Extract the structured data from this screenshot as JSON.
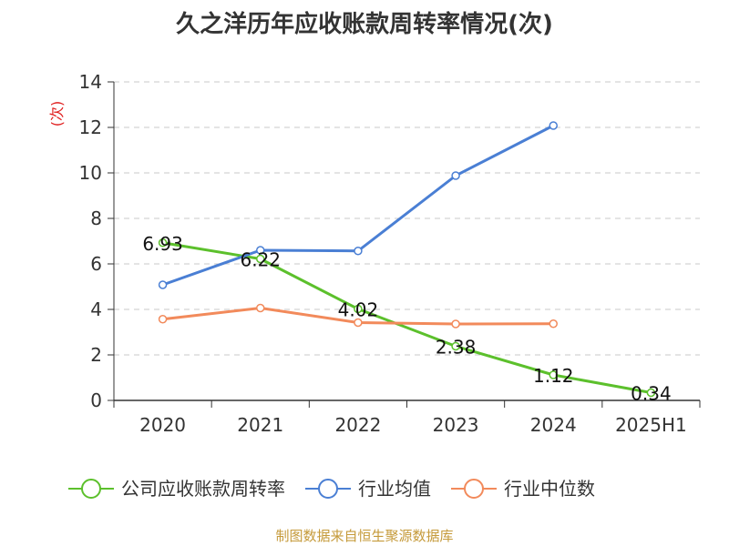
{
  "chart_data": {
    "type": "line",
    "title": "久之洋历年应收账款周转率情况(次)",
    "ylabel": "(次)",
    "xlabel": "",
    "categories": [
      "2020",
      "2021",
      "2022",
      "2023",
      "2024",
      "2025H1"
    ],
    "ylim": [
      0,
      14
    ],
    "yticks": [
      0,
      2,
      4,
      6,
      8,
      10,
      12,
      14
    ],
    "grid": true,
    "legend_position": "bottom",
    "series": [
      {
        "name": "公司应收账款周转率",
        "color": "#5cc02c",
        "values": [
          6.93,
          6.22,
          4.02,
          2.38,
          1.12,
          0.34
        ],
        "labels": [
          "6.93",
          "6.22",
          "4.02",
          "2.38",
          "1.12",
          "0.34"
        ]
      },
      {
        "name": "行业均值",
        "color": "#4a7fd4",
        "values": [
          5.08,
          6.6,
          6.57,
          9.88,
          12.08,
          null
        ]
      },
      {
        "name": "行业中位数",
        "color": "#f28a5b",
        "values": [
          3.57,
          4.06,
          3.42,
          3.36,
          3.37,
          null
        ]
      }
    ]
  },
  "source_note": "制图数据来自恒生聚源数据库"
}
